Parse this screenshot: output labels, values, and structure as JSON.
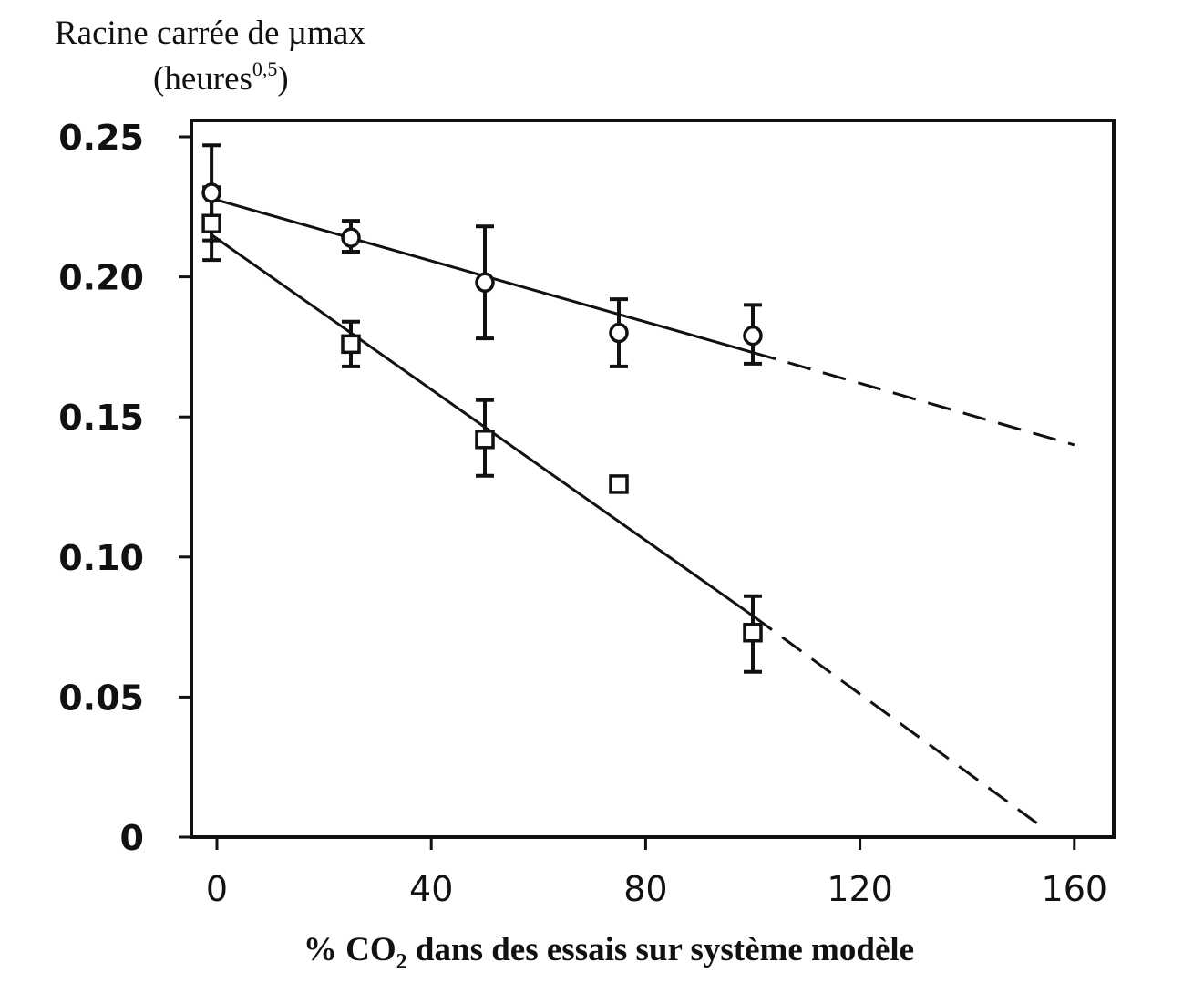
{
  "chart_data": {
    "type": "scatter",
    "ylabel_line1": "Racine carrée de µmax",
    "ylabel_line2_prefix": "(heures",
    "ylabel_line2_sup": "0,5",
    "ylabel_line2_suffix": ")",
    "xlabel_prefix": "% CO",
    "xlabel_sub": "2",
    "xlabel_suffix": " dans des essais sur système modèle",
    "xlim": [
      -10,
      165
    ],
    "ylim": [
      0,
      0.25
    ],
    "x_ticks": [
      0,
      40,
      80,
      120,
      160
    ],
    "x_tick_labels": [
      "0",
      "40",
      "80",
      "120",
      "160"
    ],
    "y_ticks": [
      0,
      0.05,
      0.1,
      0.15,
      0.2,
      0.25
    ],
    "y_tick_labels": [
      "0",
      "0.05",
      "0.10",
      "0.15",
      "0.20",
      "0.25"
    ],
    "grid": false,
    "series": [
      {
        "marker": "circle",
        "points": [
          {
            "x": -1,
            "y": 0.23,
            "err_low": 0.213,
            "err_high": 0.247
          },
          {
            "x": 25,
            "y": 0.214,
            "err_low": 0.209,
            "err_high": 0.22
          },
          {
            "x": 50,
            "y": 0.198,
            "err_low": 0.178,
            "err_high": 0.218
          },
          {
            "x": 75,
            "y": 0.18,
            "err_low": 0.168,
            "err_high": 0.192
          },
          {
            "x": 100,
            "y": 0.179,
            "err_low": 0.169,
            "err_high": 0.19
          }
        ],
        "fit_solid": [
          [
            -1,
            0.228
          ],
          [
            100,
            0.173
          ]
        ],
        "fit_dashed": [
          [
            100,
            0.173
          ],
          [
            160,
            0.14
          ]
        ]
      },
      {
        "marker": "square",
        "points": [
          {
            "x": -1,
            "y": 0.219,
            "err_low": 0.206,
            "err_high": 0.232
          },
          {
            "x": 25,
            "y": 0.176,
            "err_low": 0.168,
            "err_high": 0.184
          },
          {
            "x": 50,
            "y": 0.142,
            "err_low": 0.129,
            "err_high": 0.156
          },
          {
            "x": 75,
            "y": 0.126
          },
          {
            "x": 100,
            "y": 0.073,
            "err_low": 0.059,
            "err_high": 0.086
          }
        ],
        "fit_solid": [
          [
            -1,
            0.215
          ],
          [
            100,
            0.079
          ]
        ],
        "fit_dashed": [
          [
            100,
            0.079
          ],
          [
            153,
            0.005
          ]
        ]
      }
    ]
  }
}
